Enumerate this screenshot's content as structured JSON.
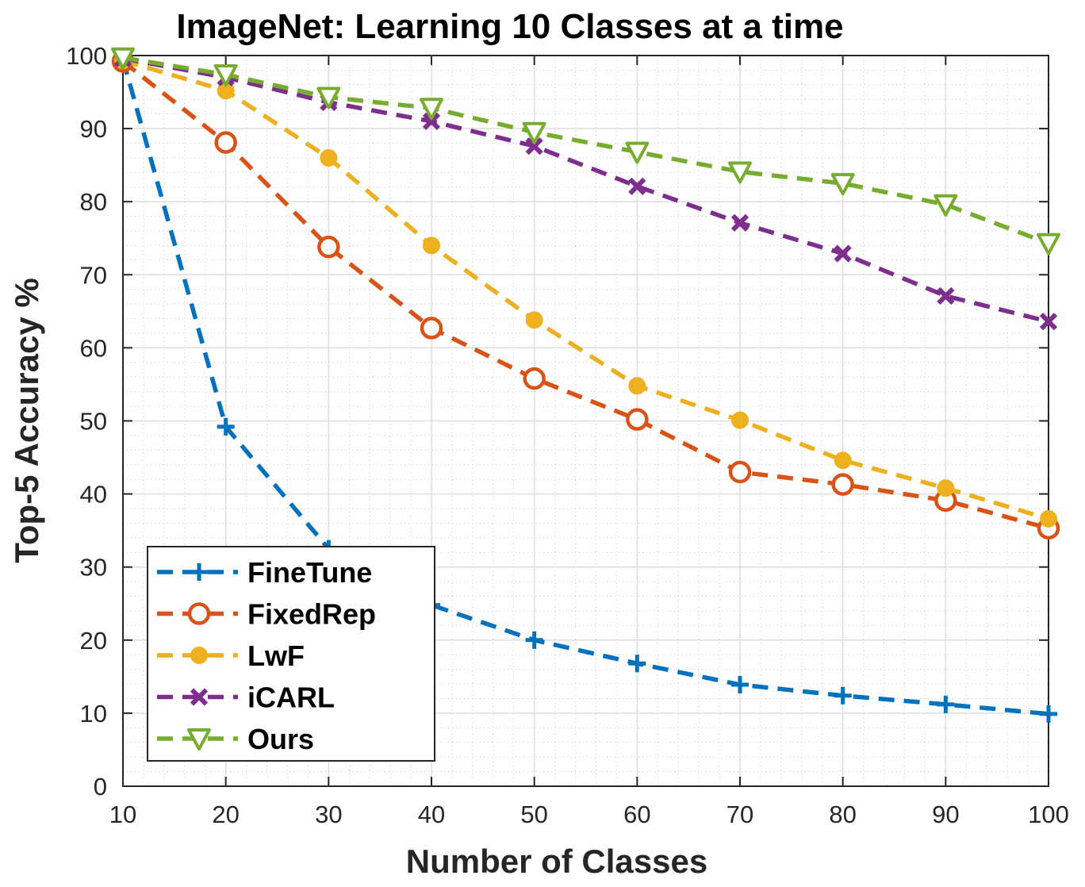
{
  "chart_data": {
    "type": "line",
    "title": "ImageNet: Learning 10 Classes at a time",
    "xlabel": "Number of Classes",
    "ylabel": "Top-5 Accuracy %",
    "x": [
      10,
      20,
      30,
      40,
      50,
      60,
      70,
      80,
      90,
      100
    ],
    "xlim": [
      10,
      100
    ],
    "ylim": [
      0,
      100
    ],
    "xticks": [
      "10",
      "20",
      "30",
      "40",
      "50",
      "60",
      "70",
      "80",
      "90",
      "100"
    ],
    "yticks": [
      "0",
      "10",
      "20",
      "30",
      "40",
      "50",
      "60",
      "70",
      "80",
      "90",
      "100"
    ],
    "grid": true,
    "minor_grid": true,
    "legend_position": "bottom-left",
    "series": [
      {
        "name": "FineTune",
        "color": "#0072BD",
        "marker": "plus",
        "values": [
          99.5,
          49.2,
          32.5,
          24.8,
          20.0,
          16.8,
          13.9,
          12.4,
          11.2,
          9.9
        ]
      },
      {
        "name": "FixedRep",
        "color": "#D95319",
        "marker": "circle",
        "values": [
          99.2,
          88.1,
          73.8,
          62.7,
          55.8,
          50.2,
          43.0,
          41.3,
          39.1,
          35.3
        ]
      },
      {
        "name": "LwF",
        "color": "#EDB120",
        "marker": "dot",
        "values": [
          99.3,
          95.2,
          86.0,
          74.0,
          63.8,
          54.8,
          50.1,
          44.6,
          40.8,
          36.6
        ]
      },
      {
        "name": "iCARL",
        "color": "#7E2F8E",
        "marker": "x",
        "values": [
          99.6,
          97.0,
          93.6,
          91.0,
          87.6,
          82.1,
          77.1,
          72.9,
          67.1,
          63.6
        ]
      },
      {
        "name": "Ours",
        "color": "#77AC30",
        "marker": "triangle-down",
        "values": [
          99.7,
          97.4,
          94.3,
          92.8,
          89.5,
          86.8,
          84.1,
          82.5,
          79.6,
          74.3
        ]
      }
    ]
  }
}
